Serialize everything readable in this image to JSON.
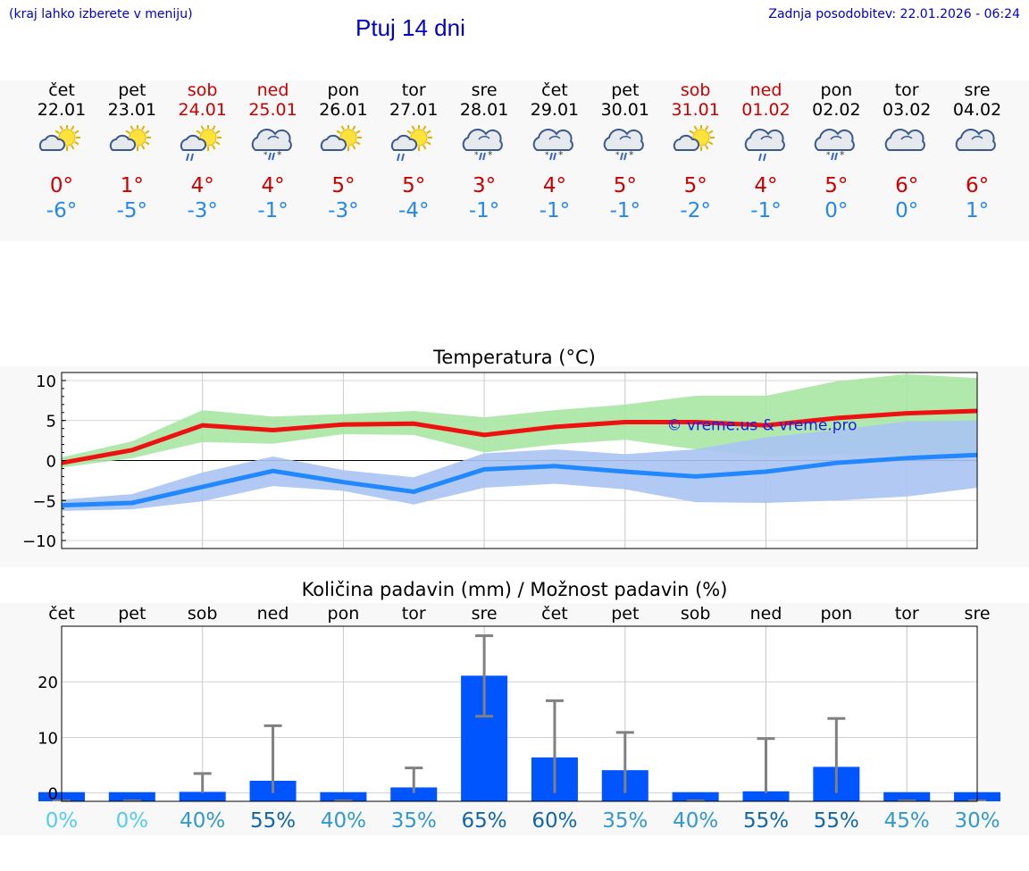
{
  "header": {
    "note": "(kraj lahko izberete v meniju)",
    "title": "Ptuj 14 dni",
    "updated": "Zadnja posodobitev: 22.01.2026 - 06:24"
  },
  "colors": {
    "max_line": "#ee1111",
    "max_band": "#a8e6a3",
    "min_line": "#2288ff",
    "min_band": "#aac4f2",
    "precip_bar": "#0055ff",
    "error_bar": "#808080"
  },
  "days": [
    {
      "name": "čet",
      "date": "22.01",
      "weekend": false,
      "icon": "sun-cloud-icon",
      "tmax": "0°",
      "tmin": "-6°"
    },
    {
      "name": "pet",
      "date": "23.01",
      "weekend": false,
      "icon": "sun-cloud-icon",
      "tmax": "1°",
      "tmin": "-5°"
    },
    {
      "name": "sob",
      "date": "24.01",
      "weekend": true,
      "icon": "sun-cloud-rain-icon",
      "tmax": "4°",
      "tmin": "-3°"
    },
    {
      "name": "ned",
      "date": "25.01",
      "weekend": true,
      "icon": "cloud-sleet-icon",
      "tmax": "4°",
      "tmin": "-1°"
    },
    {
      "name": "pon",
      "date": "26.01",
      "weekend": false,
      "icon": "sun-cloud-icon",
      "tmax": "5°",
      "tmin": "-3°"
    },
    {
      "name": "tor",
      "date": "27.01",
      "weekend": false,
      "icon": "sun-cloud-rain-icon",
      "tmax": "5°",
      "tmin": "-4°"
    },
    {
      "name": "sre",
      "date": "28.01",
      "weekend": false,
      "icon": "cloud-sleet-icon",
      "tmax": "3°",
      "tmin": "-1°"
    },
    {
      "name": "čet",
      "date": "29.01",
      "weekend": false,
      "icon": "cloud-sleet-icon",
      "tmax": "4°",
      "tmin": "-1°"
    },
    {
      "name": "pet",
      "date": "30.01",
      "weekend": false,
      "icon": "cloud-sleet-icon",
      "tmax": "5°",
      "tmin": "-1°"
    },
    {
      "name": "sob",
      "date": "31.01",
      "weekend": true,
      "icon": "sun-cloud-icon",
      "tmax": "5°",
      "tmin": "-2°"
    },
    {
      "name": "ned",
      "date": "01.02",
      "weekend": true,
      "icon": "cloud-rain-icon",
      "tmax": "4°",
      "tmin": "-1°"
    },
    {
      "name": "pon",
      "date": "02.02",
      "weekend": false,
      "icon": "cloud-sleet-icon",
      "tmax": "5°",
      "tmin": "0°"
    },
    {
      "name": "tor",
      "date": "03.02",
      "weekend": false,
      "icon": "cloud-icon",
      "tmax": "6°",
      "tmin": "0°"
    },
    {
      "name": "sre",
      "date": "04.02",
      "weekend": false,
      "icon": "cloud-icon",
      "tmax": "6°",
      "tmin": "1°"
    }
  ],
  "chart_data": [
    {
      "type": "line",
      "title": "Temperatura (°C)",
      "watermark": "© vreme.us & vreme.pro",
      "ylim": [
        -11,
        11
      ],
      "yticks": [
        10,
        5,
        0,
        -5,
        -10
      ],
      "ytick_labels": [
        "10",
        "5",
        "0",
        "−5",
        "−10"
      ],
      "x": [
        0,
        1,
        2,
        3,
        4,
        5,
        6,
        7,
        8,
        9,
        10,
        11,
        12,
        13
      ],
      "series": [
        {
          "name": "max",
          "values": [
            -0.3,
            1.3,
            4.4,
            3.8,
            4.5,
            4.6,
            3.2,
            4.2,
            4.8,
            4.8,
            4.4,
            5.3,
            5.9,
            6.2
          ],
          "band_low": [
            -0.9,
            0.3,
            2.3,
            2.1,
            3.3,
            3.2,
            1.0,
            2.0,
            2.6,
            1.4,
            0.5,
            0.7,
            0.6,
            0.5
          ],
          "band_high": [
            0.4,
            2.4,
            6.3,
            5.5,
            5.8,
            6.2,
            5.4,
            6.3,
            7.0,
            8.1,
            8.1,
            9.9,
            10.8,
            10.3
          ]
        },
        {
          "name": "min",
          "values": [
            -5.6,
            -5.3,
            -3.3,
            -1.3,
            -2.7,
            -3.9,
            -1.1,
            -0.7,
            -1.4,
            -2.0,
            -1.4,
            -0.3,
            0.3,
            0.7
          ],
          "band_low": [
            -6.3,
            -6.1,
            -5.1,
            -3.2,
            -3.8,
            -5.5,
            -3.4,
            -2.9,
            -3.6,
            -5.2,
            -5.3,
            -5.0,
            -4.5,
            -3.4
          ],
          "band_high": [
            -4.9,
            -4.2,
            -1.5,
            0.5,
            -1.2,
            -2.1,
            0.9,
            1.4,
            0.8,
            1.4,
            2.9,
            3.8,
            4.9,
            5.0
          ]
        }
      ]
    },
    {
      "type": "bar",
      "title": "Količina padavin (mm) / Možnost padavin (%)",
      "categories": [
        "čet",
        "pet",
        "sob",
        "ned",
        "pon",
        "tor",
        "sre",
        "čet",
        "pet",
        "sob",
        "ned",
        "pon",
        "tor",
        "sre"
      ],
      "ylim": [
        -1.5,
        30
      ],
      "yticks": [
        20,
        10,
        0
      ],
      "ytick_labels": [
        "20",
        "10",
        "0"
      ],
      "values": [
        0,
        0,
        0.2,
        2.2,
        0,
        1.0,
        21.1,
        6.4,
        4.1,
        0,
        0.3,
        4.7,
        0,
        0
      ],
      "error_high": [
        0,
        0,
        3.5,
        12.1,
        0,
        4.5,
        28.3,
        16.6,
        10.9,
        0,
        9.8,
        13.4,
        0,
        0
      ],
      "error_low": [
        0,
        0,
        0,
        0,
        0,
        0,
        13.8,
        0,
        0,
        0,
        0,
        0,
        0,
        0
      ],
      "probability_labels": [
        "0%",
        "0%",
        "40%",
        "55%",
        "40%",
        "35%",
        "65%",
        "60%",
        "35%",
        "40%",
        "55%",
        "55%",
        "45%",
        "30%"
      ],
      "probability_colors": [
        "#55ccee",
        "#55ccee",
        "#3399cc",
        "#1166aa",
        "#3399cc",
        "#3399cc",
        "#1166aa",
        "#1166aa",
        "#3399cc",
        "#3399cc",
        "#1166aa",
        "#1166aa",
        "#3399cc",
        "#3399cc"
      ]
    }
  ]
}
